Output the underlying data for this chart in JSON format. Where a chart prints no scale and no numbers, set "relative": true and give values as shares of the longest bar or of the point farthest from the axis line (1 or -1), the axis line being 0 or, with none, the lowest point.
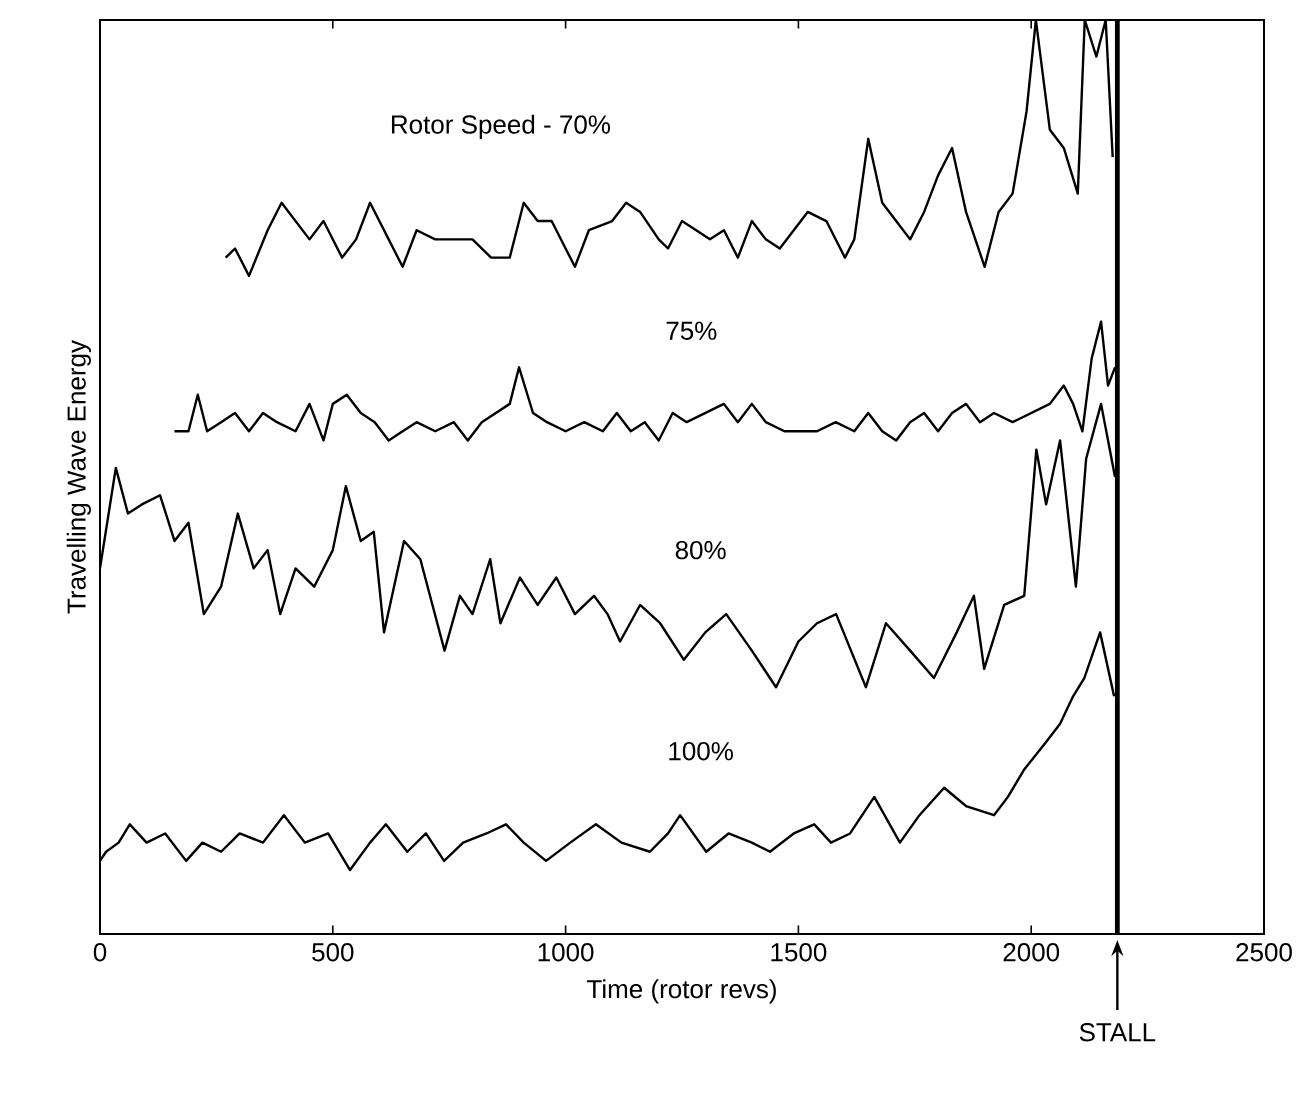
{
  "chart_data": {
    "type": "line",
    "relative": true,
    "xlabel": "Time (rotor revs)",
    "ylabel": "Travelling Wave Energy",
    "xlim": [
      0,
      2500
    ],
    "xticks": [
      0,
      500,
      1000,
      1500,
      2000,
      2500
    ],
    "marker": "none",
    "line_style": "solid",
    "grid": false,
    "series": [
      {
        "name": "Rotor Speed - 70%",
        "color": "#000000",
        "x": [
          270,
          290,
          320,
          360,
          390,
          420,
          450,
          480,
          520,
          550,
          580,
          620,
          650,
          680,
          720,
          760,
          800,
          840,
          880,
          910,
          940,
          970,
          1000,
          1020,
          1050,
          1100,
          1130,
          1160,
          1200,
          1220,
          1250,
          1280,
          1310,
          1340,
          1370,
          1400,
          1430,
          1460,
          1490,
          1520,
          1560,
          1600,
          1620,
          1650,
          1680,
          1710,
          1740,
          1770,
          1800,
          1830,
          1860,
          1900,
          1930,
          1960,
          1990,
          2010,
          2040,
          2070,
          2100,
          2115,
          2140,
          2160,
          2175
        ],
        "values": [
          0.74,
          0.75,
          0.72,
          0.77,
          0.8,
          0.78,
          0.76,
          0.78,
          0.74,
          0.76,
          0.8,
          0.76,
          0.73,
          0.77,
          0.76,
          0.76,
          0.76,
          0.74,
          0.74,
          0.8,
          0.78,
          0.78,
          0.75,
          0.73,
          0.77,
          0.78,
          0.8,
          0.79,
          0.76,
          0.75,
          0.78,
          0.77,
          0.76,
          0.77,
          0.74,
          0.78,
          0.76,
          0.75,
          0.77,
          0.79,
          0.78,
          0.74,
          0.76,
          0.87,
          0.8,
          0.78,
          0.76,
          0.79,
          0.83,
          0.86,
          0.79,
          0.73,
          0.79,
          0.81,
          0.9,
          1.0,
          0.88,
          0.86,
          0.81,
          1.0,
          0.96,
          1.0,
          0.85
        ]
      },
      {
        "name": "75%",
        "color": "#000000",
        "x": [
          160,
          190,
          210,
          230,
          260,
          290,
          320,
          350,
          380,
          420,
          450,
          480,
          500,
          530,
          560,
          590,
          620,
          650,
          680,
          720,
          760,
          790,
          820,
          850,
          880,
          900,
          930,
          960,
          1000,
          1040,
          1080,
          1110,
          1140,
          1170,
          1200,
          1230,
          1260,
          1300,
          1340,
          1370,
          1400,
          1430,
          1470,
          1500,
          1540,
          1580,
          1620,
          1650,
          1680,
          1710,
          1740,
          1770,
          1800,
          1830,
          1860,
          1890,
          1920,
          1960,
          2000,
          2040,
          2070,
          2090,
          2110,
          2130,
          2150,
          2165,
          2180
        ],
        "values": [
          0.55,
          0.55,
          0.59,
          0.55,
          0.56,
          0.57,
          0.55,
          0.57,
          0.56,
          0.55,
          0.58,
          0.54,
          0.58,
          0.59,
          0.57,
          0.56,
          0.54,
          0.55,
          0.56,
          0.55,
          0.56,
          0.54,
          0.56,
          0.57,
          0.58,
          0.62,
          0.57,
          0.56,
          0.55,
          0.56,
          0.55,
          0.57,
          0.55,
          0.56,
          0.54,
          0.57,
          0.56,
          0.57,
          0.58,
          0.56,
          0.58,
          0.56,
          0.55,
          0.55,
          0.55,
          0.56,
          0.55,
          0.57,
          0.55,
          0.54,
          0.56,
          0.57,
          0.55,
          0.57,
          0.58,
          0.56,
          0.57,
          0.56,
          0.57,
          0.58,
          0.6,
          0.58,
          0.55,
          0.63,
          0.67,
          0.6,
          0.62
        ]
      },
      {
        "name": "80%",
        "color": "#000000",
        "x": [
          0,
          34,
          60,
          90,
          129,
          160,
          190,
          223,
          260,
          296,
          330,
          360,
          387,
          420,
          460,
          500,
          528,
          560,
          588,
          610,
          653,
          688,
          740,
          773,
          800,
          838,
          860,
          902,
          940,
          980,
          1020,
          1061,
          1090,
          1117,
          1160,
          1203,
          1254,
          1300,
          1345,
          1400,
          1452,
          1500,
          1540,
          1581,
          1645,
          1688,
          1740,
          1791,
          1840,
          1877,
          1899,
          1942,
          1985,
          2011,
          2032,
          2062,
          2096,
          2118,
          2150,
          2180
        ],
        "values": [
          0.4,
          0.51,
          0.46,
          0.47,
          0.48,
          0.43,
          0.45,
          0.35,
          0.38,
          0.46,
          0.4,
          0.42,
          0.35,
          0.4,
          0.38,
          0.42,
          0.49,
          0.43,
          0.44,
          0.33,
          0.43,
          0.41,
          0.31,
          0.37,
          0.35,
          0.41,
          0.34,
          0.39,
          0.36,
          0.39,
          0.35,
          0.37,
          0.35,
          0.32,
          0.36,
          0.34,
          0.3,
          0.33,
          0.35,
          0.31,
          0.27,
          0.32,
          0.34,
          0.35,
          0.27,
          0.34,
          0.31,
          0.28,
          0.33,
          0.37,
          0.29,
          0.36,
          0.37,
          0.53,
          0.47,
          0.54,
          0.38,
          0.52,
          0.58,
          0.5
        ]
      },
      {
        "name": "100%",
        "color": "#000000",
        "x": [
          0,
          13,
          40,
          64,
          100,
          140,
          185,
          220,
          260,
          300,
          350,
          395,
          440,
          490,
          537,
          580,
          614,
          660,
          700,
          739,
          780,
          830,
          872,
          910,
          958,
          1010,
          1065,
          1120,
          1181,
          1220,
          1246,
          1302,
          1350,
          1400,
          1439,
          1490,
          1534,
          1570,
          1611,
          1663,
          1718,
          1760,
          1813,
          1860,
          1920,
          1950,
          1985,
          2032,
          2062,
          2090,
          2114,
          2148,
          2178
        ],
        "values": [
          0.08,
          0.09,
          0.1,
          0.12,
          0.1,
          0.11,
          0.08,
          0.1,
          0.09,
          0.11,
          0.1,
          0.13,
          0.1,
          0.11,
          0.07,
          0.1,
          0.12,
          0.09,
          0.11,
          0.08,
          0.1,
          0.11,
          0.12,
          0.1,
          0.08,
          0.1,
          0.12,
          0.1,
          0.09,
          0.11,
          0.13,
          0.09,
          0.11,
          0.1,
          0.09,
          0.11,
          0.12,
          0.1,
          0.11,
          0.15,
          0.1,
          0.13,
          0.16,
          0.14,
          0.13,
          0.15,
          0.18,
          0.21,
          0.23,
          0.26,
          0.28,
          0.33,
          0.26
        ]
      }
    ],
    "ref_lines": [
      {
        "axis": "x",
        "value": 2185,
        "label": "STALL",
        "color": "#000000"
      }
    ]
  }
}
